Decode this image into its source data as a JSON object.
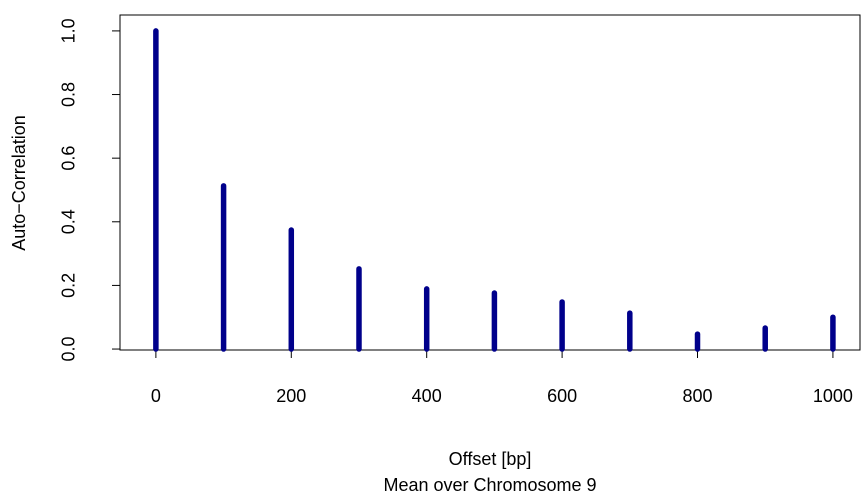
{
  "chart_data": {
    "type": "stem",
    "xlabel": "Offset [bp]",
    "subtitle": "Mean over Chromosome 9",
    "ylabel": "Auto−Correlation",
    "x": [
      0,
      100,
      200,
      300,
      400,
      500,
      600,
      700,
      800,
      900,
      1000
    ],
    "values": [
      1.0,
      0.513,
      0.374,
      0.252,
      0.189,
      0.176,
      0.148,
      0.113,
      0.047,
      0.066,
      0.1
    ],
    "color": "#00008b",
    "xlim": [
      -53,
      1040
    ],
    "ylim": [
      -0.003,
      1.05
    ],
    "xticks": [
      0,
      200,
      400,
      600,
      800,
      1000
    ],
    "yticks": [
      {
        "value": 0,
        "label": "0.0"
      },
      0.2,
      0.4,
      0.6,
      0.8,
      {
        "value": 1,
        "label": "1.0"
      }
    ]
  }
}
